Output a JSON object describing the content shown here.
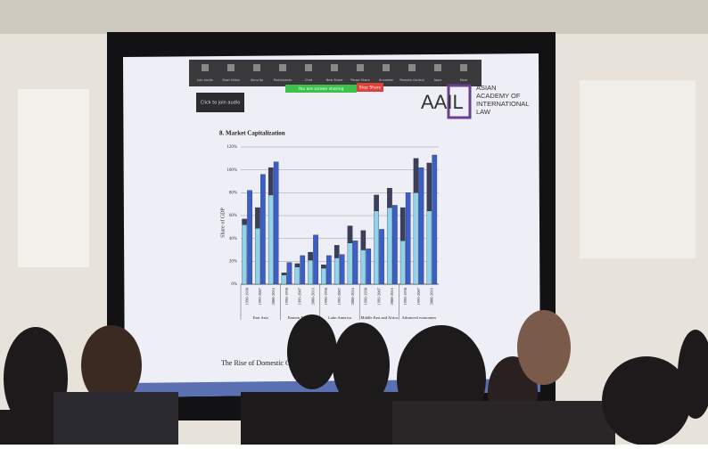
{
  "toolbar": {
    "items": [
      "Join Audio",
      "Start Video",
      "Security",
      "Participants",
      "Chat",
      "New Share",
      "Pause Share",
      "Annotate",
      "Remote Control",
      "Apps",
      "More"
    ],
    "tooltip": "Click to join audio",
    "sharing_notice": "You are screen sharing",
    "stop_share": "Stop Share"
  },
  "logo": {
    "mark": "AAIL",
    "text_lines": [
      "ASIAN",
      "ACADEMY OF",
      "INTERNATIONAL",
      "LAW"
    ]
  },
  "chart_data": {
    "type": "bar",
    "title": "8. Market Capitalization",
    "y_label": "Share of GDP",
    "categories": [
      "1990-1998",
      "1999-2007",
      "2008-2016",
      "1990-1998",
      "1999-2007",
      "2008-2016",
      "1990-1998",
      "1999-2007",
      "2008-2016",
      "1990-1998",
      "1999-2007",
      "2008-2016",
      "1990-1998",
      "1999-2007",
      "2008-2016"
    ],
    "groups": [
      "East Asia",
      "Eastern Europe",
      "Latin America",
      "Middle East and Africa",
      "Advanced economies"
    ],
    "series": [
      {
        "color": "#8fd3ec",
        "stack": "a",
        "values": [
          52,
          49,
          78,
          8,
          15,
          21,
          14,
          23,
          36,
          30,
          64,
          67,
          38,
          80,
          64
        ]
      },
      {
        "color": "#3a3f5a",
        "stack": "a",
        "values": [
          5,
          18,
          24,
          2,
          3,
          7,
          3,
          11,
          15,
          17,
          14,
          17,
          29,
          30,
          42
        ]
      },
      {
        "color": "#3a5fc8",
        "stack": "b",
        "values": [
          82,
          96,
          107,
          19,
          25,
          43,
          25,
          26,
          38,
          31,
          48,
          69,
          80,
          102,
          113
        ]
      }
    ],
    "ylim": [
      0,
      120
    ],
    "yticks": [
      {
        "value": 0,
        "label": "0%"
      },
      {
        "value": 20,
        "label": "20%"
      },
      {
        "value": 40,
        "label": "40%"
      },
      {
        "value": 60,
        "label": "60%"
      },
      {
        "value": 80,
        "label": "80%"
      },
      {
        "value": 100,
        "label": "100%"
      },
      {
        "value": 120,
        "label": "120%"
      }
    ],
    "grid": true
  },
  "footer": "The Rise of Domestic Capital M"
}
